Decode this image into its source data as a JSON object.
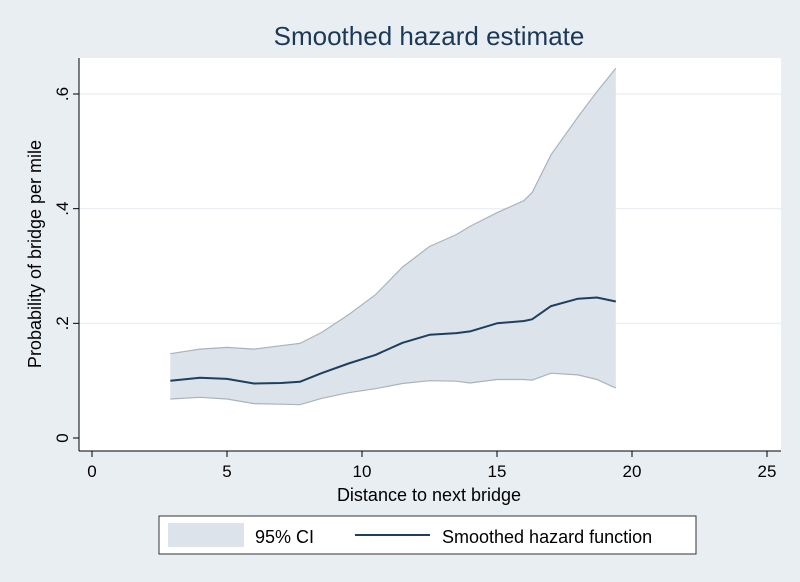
{
  "chart_data": {
    "type": "line",
    "title": "Smoothed hazard estimate",
    "xlabel": "Distance to next bridge",
    "ylabel": "Probability of bridge per mile",
    "xlim": [
      0,
      25
    ],
    "ylim": [
      0,
      0.6
    ],
    "xticks": [
      0,
      5,
      10,
      15,
      20,
      25
    ],
    "xtick_labels": [
      "0",
      "5",
      "10",
      "15",
      "20",
      "25"
    ],
    "yticks": [
      0,
      0.2,
      0.4,
      0.6
    ],
    "ytick_labels": [
      "0",
      ".2",
      ".4",
      ".6"
    ],
    "grid": true,
    "legend": {
      "position": "bottom",
      "entries": [
        "95% CI",
        "Smoothed hazard function"
      ]
    },
    "colors": {
      "ci_fill": "#dde3ea",
      "ci_edge": "#a9b3bf",
      "line": "#1e3f5e",
      "background": "#e9eef3",
      "plot_area": "#ffffff",
      "grid": "#e8edf2"
    },
    "x": [
      2.9,
      4.0,
      5.0,
      6.0,
      7.0,
      7.7,
      8.5,
      9.5,
      10.5,
      11.5,
      12.5,
      13.5,
      14.0,
      15.0,
      16.0,
      16.3,
      17.0,
      18.0,
      18.7,
      19.4
    ],
    "series": [
      {
        "name": "Smoothed hazard function",
        "values": [
          0.1,
          0.105,
          0.103,
          0.095,
          0.096,
          0.098,
          0.113,
          0.13,
          0.145,
          0.166,
          0.18,
          0.183,
          0.186,
          0.2,
          0.204,
          0.207,
          0.23,
          0.243,
          0.245,
          0.238
        ]
      },
      {
        "name": "95% CI",
        "lower": [
          0.068,
          0.071,
          0.068,
          0.06,
          0.059,
          0.058,
          0.069,
          0.079,
          0.086,
          0.095,
          0.1,
          0.099,
          0.096,
          0.102,
          0.102,
          0.101,
          0.113,
          0.11,
          0.102,
          0.087
        ],
        "upper": [
          0.147,
          0.155,
          0.158,
          0.155,
          0.161,
          0.165,
          0.184,
          0.215,
          0.25,
          0.298,
          0.334,
          0.355,
          0.369,
          0.393,
          0.414,
          0.428,
          0.494,
          0.56,
          0.604,
          0.645
        ]
      }
    ]
  }
}
